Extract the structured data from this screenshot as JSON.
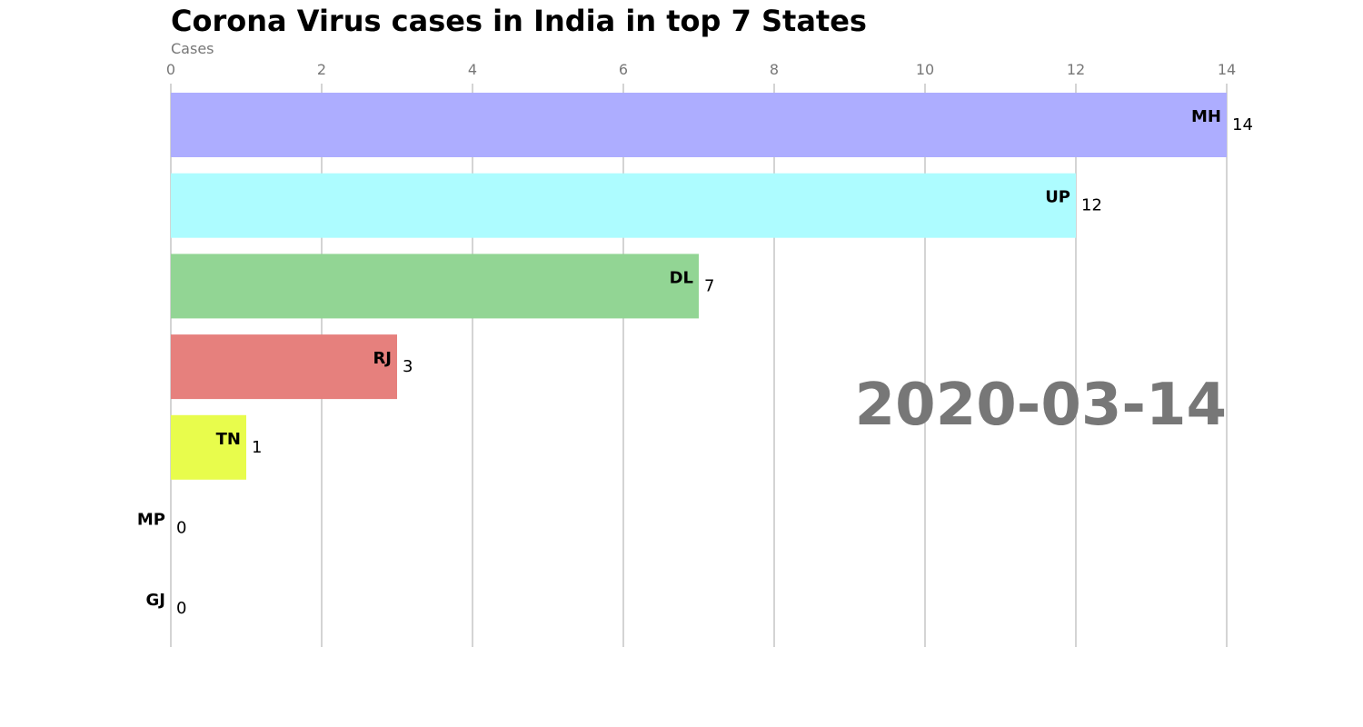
{
  "chart_data": {
    "type": "bar",
    "orientation": "horizontal",
    "title": "Corona Virus cases in India in top 7 States",
    "xlabel": "Cases",
    "ylabel": "",
    "xlim": [
      0,
      14
    ],
    "x_ticks": [
      0,
      2,
      4,
      6,
      8,
      10,
      12,
      14
    ],
    "grid": true,
    "date": "2020-03-14",
    "categories": [
      "MH",
      "UP",
      "DL",
      "RJ",
      "TN",
      "MP",
      "GJ"
    ],
    "values": [
      14,
      12,
      7,
      3,
      1,
      0,
      0
    ],
    "colors": [
      "#adadff",
      "#adfcff",
      "#92d594",
      "#e6807d",
      "#e8fc4c",
      "#d9d9d9",
      "#d9d9d9"
    ]
  },
  "colors": {
    "text": "#000000",
    "muted": "#777777",
    "grid": "#aaaaaa"
  }
}
